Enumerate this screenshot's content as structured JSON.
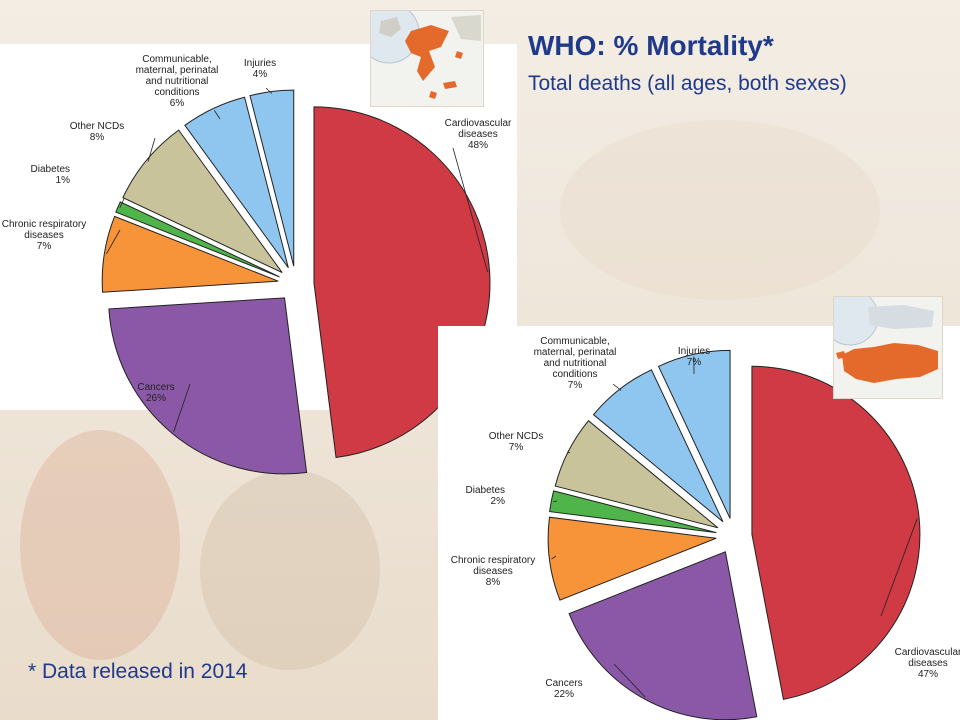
{
  "slide": {
    "title": "WHO: % Mortality*",
    "subtitle": "Total deaths (all ages, both sexes)",
    "footnote": "* Data released in 2014"
  },
  "colors": {
    "title_text": "#1f3a8a",
    "cardiovascular": "#cf3a45",
    "cancers": "#8a58a6",
    "chronic_respiratory": "#f7943a",
    "diabetes": "#4fb44a",
    "other_ncds": "#c8c39a",
    "communicable": "#8fc6f0",
    "injuries": "#8fc6f0"
  },
  "chart_data": [
    {
      "type": "pie",
      "country_map": "greece-map",
      "slices": [
        {
          "key": "cardiovascular",
          "label_lines": [
            "Cardiovascular",
            "diseases",
            "48%"
          ],
          "value": 48
        },
        {
          "key": "cancers",
          "label_lines": [
            "Cancers",
            "26%"
          ],
          "value": 26
        },
        {
          "key": "chronic_respiratory",
          "label_lines": [
            "Chronic respiratory",
            "diseases",
            "7%"
          ],
          "value": 7
        },
        {
          "key": "diabetes",
          "label_lines": [
            "Diabetes",
            "1%"
          ],
          "value": 1
        },
        {
          "key": "other_ncds",
          "label_lines": [
            "Other NCDs",
            "8%"
          ],
          "value": 8
        },
        {
          "key": "communicable",
          "label_lines": [
            "Communicable,",
            "maternal, perinatal",
            "and nutritional",
            "conditions",
            "6%"
          ],
          "value": 6
        },
        {
          "key": "injuries",
          "label_lines": [
            "Injuries",
            "4%"
          ],
          "value": 4
        }
      ]
    },
    {
      "type": "pie",
      "country_map": "turkey-map",
      "slices": [
        {
          "key": "cardiovascular",
          "label_lines": [
            "Cardiovascular",
            "diseases",
            "47%"
          ],
          "value": 47
        },
        {
          "key": "cancers",
          "label_lines": [
            "Cancers",
            "22%"
          ],
          "value": 22
        },
        {
          "key": "chronic_respiratory",
          "label_lines": [
            "Chronic respiratory",
            "diseases",
            "8%"
          ],
          "value": 8
        },
        {
          "key": "diabetes",
          "label_lines": [
            "Diabetes",
            "2%"
          ],
          "value": 2
        },
        {
          "key": "other_ncds",
          "label_lines": [
            "Other NCDs",
            "7%"
          ],
          "value": 7
        },
        {
          "key": "communicable",
          "label_lines": [
            "Communicable,",
            "maternal, perinatal",
            "and nutritional",
            "conditions",
            "7%"
          ],
          "value": 7
        },
        {
          "key": "injuries",
          "label_lines": [
            "Injuries",
            "7%"
          ],
          "value": 7
        }
      ]
    }
  ]
}
